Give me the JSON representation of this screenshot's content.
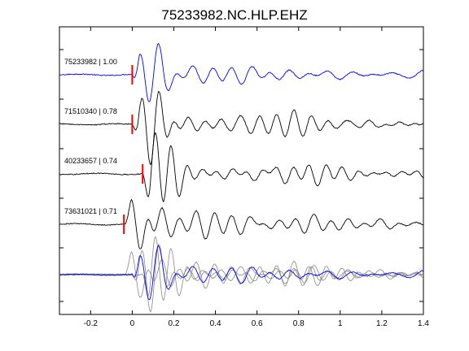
{
  "chart_data": {
    "type": "line",
    "title": "75233982.NC.HLP.EHZ",
    "xlabel": "",
    "ylabel": "",
    "xlim": [
      -0.35,
      1.4
    ],
    "xticks": [
      -0.2,
      0,
      0.2,
      0.4,
      0.6,
      0.8,
      1,
      1.2,
      1.4
    ],
    "xtick_labels": [
      "-0.2",
      "0",
      "0.2",
      "0.4",
      "0.6",
      "0.8",
      "1",
      "1.2",
      "1.4"
    ],
    "grid": false,
    "legend": "none",
    "colors": {
      "master": "#0000ff",
      "other": "#000000",
      "overlay_other": "#888888",
      "pick": "#ff0000"
    },
    "series": [
      {
        "label": "75233982 | 1.00",
        "pick_time": 0.0,
        "color": "#0000ff",
        "master": true
      },
      {
        "label": "71510340 | 0.78",
        "pick_time": 0.0,
        "color": "#000000",
        "master": false
      },
      {
        "label": "40233657 | 0.74",
        "pick_time": 0.05,
        "color": "#000000",
        "master": false
      },
      {
        "label": "73631021 | 0.71",
        "pick_time": -0.04,
        "color": "#000000",
        "master": false
      }
    ],
    "overlay": {
      "label": "",
      "includes_all_series": true
    }
  }
}
